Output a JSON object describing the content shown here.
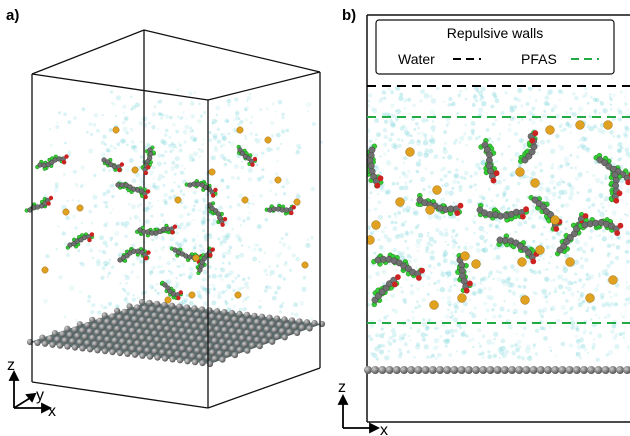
{
  "panels": {
    "a": {
      "label": "a)"
    },
    "b": {
      "label": "b)"
    }
  },
  "axes_a": {
    "z": "z",
    "y": "y",
    "x": "x"
  },
  "axes_b": {
    "z": "z",
    "x": "x"
  },
  "legend": {
    "title": "Repulsive walls",
    "items": [
      {
        "label": "Water",
        "color": "#000000",
        "style": "dashed"
      },
      {
        "label": "PFAS",
        "color": "#22aa44",
        "style": "dashed"
      }
    ]
  },
  "colors": {
    "water": "#7fd6dc",
    "graphene": "#7a7a7a",
    "carbon": "#707070",
    "fluorine": "#33cc33",
    "oxygen": "#cc2222",
    "ion": "#e0a020"
  }
}
